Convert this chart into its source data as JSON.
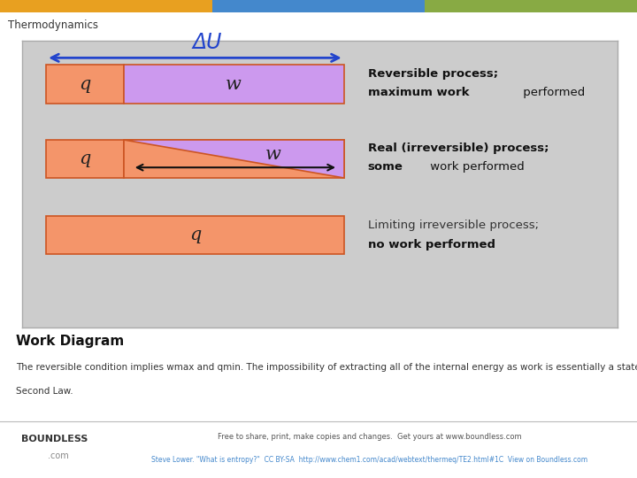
{
  "title": "Thermodynamics",
  "page_bg": "#ffffff",
  "header_bg": "#eeeeee",
  "header_stripe_colors": [
    "#e8a020",
    "#4488cc",
    "#88aa44"
  ],
  "diagram_bg": "#cccccc",
  "diagram_border": "#aaaaaa",
  "orange_color": "#f4956a",
  "purple_color": "#cc99ee",
  "box_edge_color": "#cc5522",
  "arrow_color": "#2244cc",
  "subtitle": "Work Diagram",
  "description_line1": "The reversible condition implies wmax and qmin. The impossibility of extracting all of the internal energy as work is essentially a statement of the",
  "description_line2": "Second Law.",
  "footer_bg": "#f0f0f0",
  "footer_right": "Free to share, print, make copies and changes.  Get yours at www.boundless.com",
  "footer_cite": "Steve Lower. \"What is entropy?\"  CC BY-SA  http://www.chem1.com/acad/webtext/thermeq/TE2.html#1C  View on Boundless.com",
  "label1_bold": "Reversible process;",
  "label1_bold2": "maximum work",
  "label1_normal": " performed",
  "label2_bold": "Real (irreversible) process;",
  "label2_bold2": "some",
  "label2_normal": " work performed",
  "label3_normal": "Limiting irreversible process;",
  "label3_bold": "no work performed"
}
